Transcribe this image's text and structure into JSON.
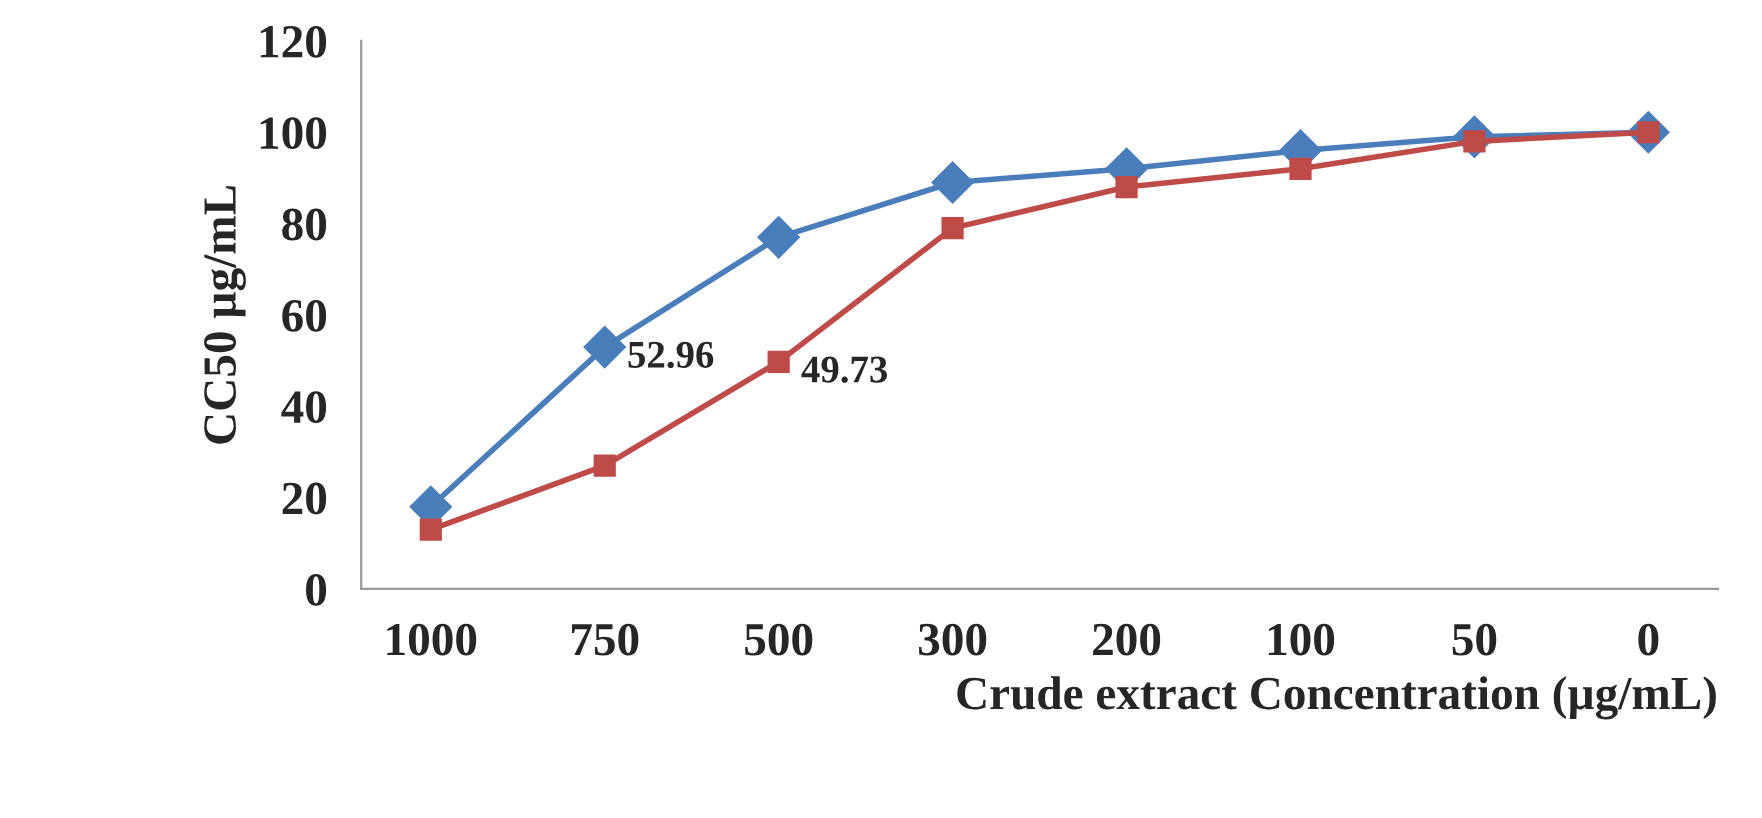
{
  "chart_data": {
    "type": "line",
    "xlabel": "Crude extract Concentration (µg/mL)",
    "ylabel": "CC50 µg/mL",
    "categories": [
      "1000",
      "750",
      "500",
      "300",
      "200",
      "100",
      "50",
      "0"
    ],
    "series": [
      {
        "color": "#4a7ebb",
        "marker": "diamond",
        "values": [
          18,
          52.96,
          77,
          89,
          92,
          96,
          99,
          100
        ],
        "value_labels": [
          null,
          "52.96",
          null,
          null,
          null,
          null,
          null,
          null
        ]
      },
      {
        "color": "#be4b48",
        "marker": "square",
        "values": [
          13,
          27,
          49.73,
          79,
          88,
          92,
          98,
          100
        ],
        "value_labels": [
          null,
          null,
          "49.73",
          null,
          null,
          null,
          null,
          null
        ]
      }
    ],
    "ylim": [
      0,
      120
    ],
    "yticks": [
      0,
      20,
      40,
      60,
      80,
      100,
      120
    ],
    "grid": false,
    "legend": false,
    "line_style": "solid"
  }
}
